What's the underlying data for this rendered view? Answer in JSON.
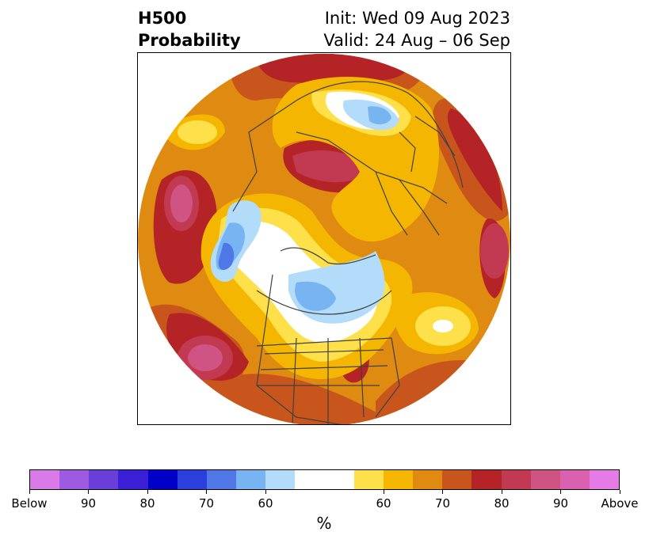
{
  "title": {
    "left_line1": "H500",
    "left_line2": "Probability",
    "right_line1": "Init: Wed 09 Aug 2023",
    "right_line2": "Valid: 24 Aug – 06 Sep"
  },
  "colorbar": {
    "unit": "%",
    "colors": [
      "#d97ae8",
      "#9e5ae0",
      "#6a3fd9",
      "#3a1fd6",
      "#0000c8",
      "#2a3fdc",
      "#4f77e6",
      "#78b4f2",
      "#b3dcfb",
      "#ffffff",
      "#ffffff",
      "#fde04a",
      "#f4b600",
      "#df8a10",
      "#c8561c",
      "#b42426",
      "#c23a52",
      "#cf5484",
      "#da60b0",
      "#e67ae6"
    ],
    "tick_labels": [
      "Below",
      "90",
      "80",
      "70",
      "60",
      "60",
      "70",
      "80",
      "90",
      "Above"
    ]
  },
  "map": {
    "ocean_color": "#ffffff",
    "coastline_color": "#404040"
  }
}
